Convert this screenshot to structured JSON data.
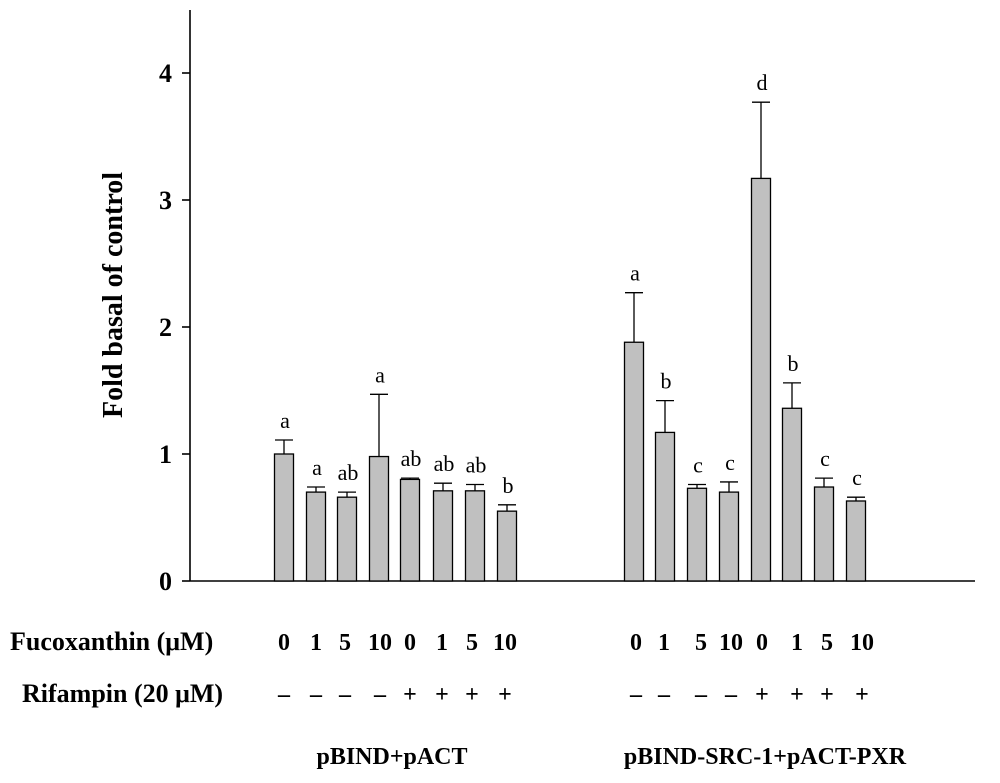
{
  "chart_data": {
    "type": "bar",
    "title": "",
    "xlabel": "",
    "ylabel": "Fold basal of control",
    "ylim": [
      0,
      4.5
    ],
    "yticks": [
      0,
      1,
      2,
      3,
      4
    ],
    "grid": false,
    "row_labels": {
      "fucoxanthin": "Fucoxanthin (μM)",
      "rifampin": "Rifampin (20 μM)"
    },
    "groups": [
      {
        "name": "pBIND+pACT",
        "fucoxanthin": [
          "0",
          "1",
          "5",
          "10",
          "0",
          "1",
          "5",
          "10"
        ],
        "rifampin": [
          "–",
          "–",
          "–",
          "–",
          "+",
          "+",
          "+",
          "+"
        ],
        "values": [
          1.0,
          0.7,
          0.66,
          0.98,
          0.8,
          0.71,
          0.71,
          0.55
        ],
        "errors": [
          0.11,
          0.04,
          0.04,
          0.49,
          0.01,
          0.06,
          0.05,
          0.05
        ],
        "letters": [
          "a",
          "a",
          "ab",
          "a",
          "ab",
          "ab",
          "ab",
          "b"
        ]
      },
      {
        "name": "pBIND-SRC-1+pACT-PXR",
        "fucoxanthin": [
          "0",
          "1",
          "5",
          "10",
          "0",
          "1",
          "5",
          "10"
        ],
        "rifampin": [
          "–",
          "–",
          "–",
          "–",
          "+",
          "+",
          "+",
          "+"
        ],
        "values": [
          1.88,
          1.17,
          0.73,
          0.7,
          3.17,
          1.36,
          0.74,
          0.63
        ],
        "errors": [
          0.39,
          0.25,
          0.03,
          0.08,
          0.6,
          0.2,
          0.07,
          0.03
        ],
        "letters": [
          "a",
          "b",
          "c",
          "c",
          "d",
          "b",
          "c",
          "c"
        ]
      }
    ]
  }
}
